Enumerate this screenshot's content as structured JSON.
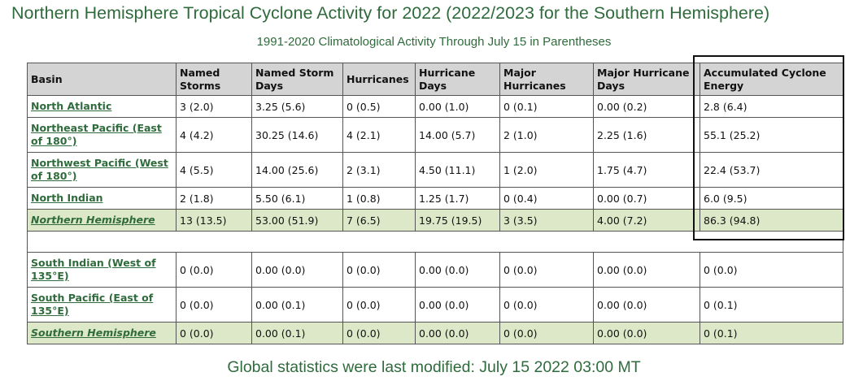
{
  "title": "Northern Hemisphere Tropical Cyclone Activity for 2022 (2022/2023 for the Southern Hemisphere)",
  "subtitle": "1991-2020 Climatological Activity Through July 15 in Parentheses",
  "headers": [
    "Basin",
    "Named Storms",
    "Named Storm Days",
    "Hurricanes",
    "Hurricane Days",
    "Major Hurricanes",
    "Major Hurricane Days",
    "Accumulated Cyclone Energy"
  ],
  "north_rows": [
    {
      "basin": "North Atlantic",
      "cells": [
        "3 (2.0)",
        "3.25 (5.6)",
        "0 (0.5)",
        "0.00 (1.0)",
        "0 (0.1)",
        "0.00 (0.2)",
        "2.8 (6.4)"
      ]
    },
    {
      "basin": "Northeast Pacific (East of 180°)",
      "cells": [
        "4 (4.2)",
        "30.25 (14.6)",
        "4 (2.1)",
        "14.00 (5.7)",
        "2 (1.0)",
        "2.25 (1.6)",
        "55.1 (25.2)"
      ]
    },
    {
      "basin": "Northwest Pacific (West of 180°)",
      "cells": [
        "4 (5.5)",
        "14.00 (25.6)",
        "2 (3.1)",
        "4.50 (11.1)",
        "1 (2.0)",
        "1.75 (4.7)",
        "22.4 (53.7)"
      ]
    },
    {
      "basin": "North Indian",
      "cells": [
        "2 (1.8)",
        "5.50 (6.1)",
        "1 (0.8)",
        "1.25 (1.7)",
        "0 (0.4)",
        "0.00 (0.7)",
        "6.0 (9.5)"
      ]
    }
  ],
  "north_total": {
    "basin": "Northern Hemisphere",
    "cells": [
      "13 (13.5)",
      "53.00 (51.9)",
      "7 (6.5)",
      "19.75 (19.5)",
      "3 (3.5)",
      "4.00 (7.2)",
      "86.3 (94.8)"
    ]
  },
  "south_rows": [
    {
      "basin": "South Indian (West of 135°E)",
      "cells": [
        "0 (0.0)",
        "0.00 (0.0)",
        "0 (0.0)",
        "0.00 (0.0)",
        "0 (0.0)",
        "0.00 (0.0)",
        "0 (0.0)"
      ]
    },
    {
      "basin": "South Pacific (East of 135°E)",
      "cells": [
        "0 (0.0)",
        "0.00 (0.1)",
        "0 (0.0)",
        "0.00 (0.0)",
        "0 (0.0)",
        "0.00 (0.0)",
        "0 (0.1)"
      ]
    }
  ],
  "south_total": {
    "basin": "Southern Hemisphere",
    "cells": [
      "0 (0.0)",
      "0.00 (0.1)",
      "0 (0.0)",
      "0.00 (0.0)",
      "0 (0.0)",
      "0.00 (0.0)",
      "0 (0.1)"
    ]
  },
  "footer": "Global statistics were last modified: July 15 2022 03:00 MT",
  "colors": {
    "accent_green": "#2f6b3c",
    "header_gray": "#d4d4d4",
    "total_row": "#dde8c8"
  }
}
